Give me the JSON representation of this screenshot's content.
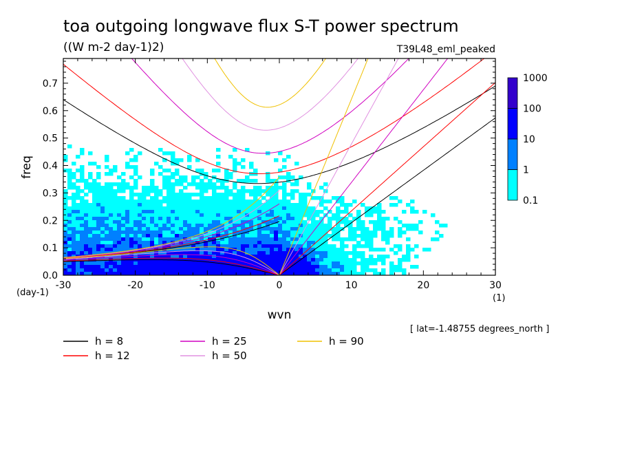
{
  "title": "toa outgoing longwave flux S-T power spectrum",
  "units": "((W m-2 day-1)2)",
  "run_label": "T39L48_eml_peaked",
  "location_note": "[ lat=-1.48755 degrees_north ]",
  "chart_data": {
    "type": "heatmap",
    "xlabel": "wvn",
    "ylabel": "freq",
    "x_unit_label": "(1)",
    "y_unit_label": "(day-1)",
    "xlim": [
      -30,
      30
    ],
    "ylim": [
      0,
      0.79
    ],
    "x_ticks": [
      -30,
      -20,
      -10,
      0,
      10,
      20,
      30
    ],
    "x_tick_labels": [
      "-30",
      "-20",
      "-10",
      "0",
      "10",
      "20",
      "30"
    ],
    "y_ticks": [
      0,
      0.1,
      0.2,
      0.3,
      0.4,
      0.5,
      0.6,
      0.7
    ],
    "y_tick_labels": [
      "0.0",
      "0.1",
      "0.2",
      "0.3",
      "0.4",
      "0.5",
      "0.6",
      "0.7"
    ],
    "colorbar": {
      "levels": [
        0.1,
        1,
        10,
        100,
        1000
      ],
      "level_labels": [
        "0.1",
        "1",
        "10",
        "100",
        "1000"
      ],
      "colors": [
        "#00ffff",
        "#0080ff",
        "#0000ff",
        "#3300cc"
      ]
    },
    "dispersion_curves": [
      {
        "label": "h =  8",
        "h": 8,
        "color": "#000000"
      },
      {
        "label": "h = 12",
        "h": 12,
        "color": "#ff0000"
      },
      {
        "label": "h = 25",
        "h": 25,
        "color": "#d000c0"
      },
      {
        "label": "h = 50",
        "h": 50,
        "color": "#e090e0"
      },
      {
        "label": "h = 90",
        "h": 90,
        "color": "#f0c000"
      }
    ]
  },
  "legend_items": [
    {
      "label": "h =  8",
      "color": "#000000"
    },
    {
      "label": "h = 12",
      "color": "#ff0000"
    },
    {
      "label": "h = 25",
      "color": "#d000c0"
    },
    {
      "label": "h = 50",
      "color": "#e090e0"
    },
    {
      "label": "h = 90",
      "color": "#f0c000"
    }
  ]
}
